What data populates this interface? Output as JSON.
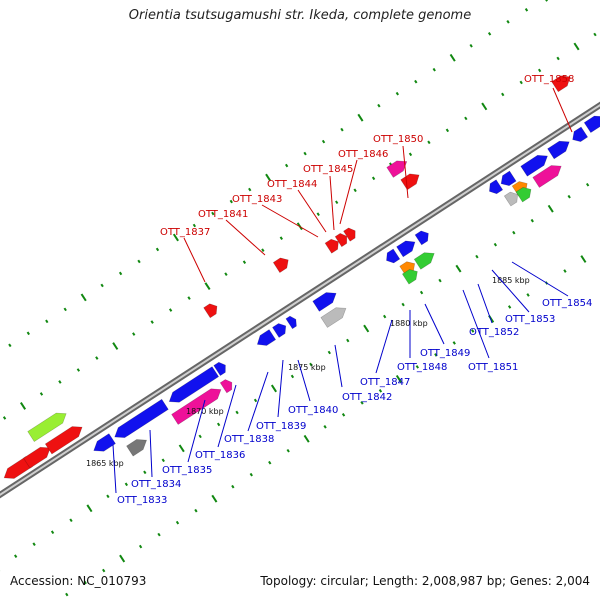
{
  "title": "Orientia tsutsugamushi str. Ikeda, complete genome",
  "footer": {
    "accession": "Accession: NC_010793",
    "summary": "Topology: circular; Length: 2,008,987 bp; Genes: 2,004"
  },
  "colors": {
    "backbone": "#8a8a8a",
    "top_strand_label": "#cc0000",
    "bottom_strand_label": "#0000cc",
    "gene_red": "#ee1111",
    "gene_blue": "#1111ee",
    "gene_magenta": "#ee1199",
    "gene_lime": "#99ee33",
    "gene_green": "#33cc33",
    "gene_gray": "#bbbbbb",
    "gene_darkgray": "#777777",
    "gene_orange": "#ff8800",
    "tick": "#118811"
  },
  "kbp_labels": [
    "1865 kbp",
    "1870 kbp",
    "1875 kbp",
    "1880 kbp",
    "1885 kbp"
  ],
  "top_genes": [
    "OTT_1837",
    "OTT_1841",
    "OTT_1843",
    "OTT_1844",
    "OTT_1845",
    "OTT_1846",
    "OTT_1850",
    "OTT_1858"
  ],
  "bottom_genes": [
    "OTT_1833",
    "OTT_1834",
    "OTT_1835",
    "OTT_1836",
    "OTT_1838",
    "OTT_1839",
    "OTT_1840",
    "OTT_1842",
    "OTT_1847",
    "OTT_1848",
    "OTT_1849",
    "OTT_1851",
    "OTT_1852",
    "OTT_1853",
    "OTT_1854"
  ]
}
